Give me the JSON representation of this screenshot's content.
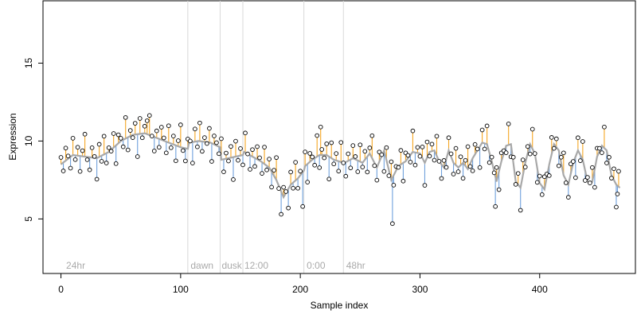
{
  "chart_data": {
    "type": "scatter",
    "xlabel": "Sample index",
    "ylabel": "Expression",
    "xlim": [
      -15,
      480
    ],
    "ylim": [
      1.5,
      19
    ],
    "xticks": [
      0,
      100,
      200,
      300,
      400
    ],
    "yticks": [
      5,
      10,
      15
    ],
    "colors": {
      "point_stroke": "#000000",
      "above_trend": "#f5a623",
      "below_trend": "#6fa0dc",
      "trend_line": "#a8a8a8",
      "vline": "#d8d8d8",
      "annotation": "#aaaaaa"
    },
    "annotations": [
      {
        "x": 3,
        "label": "24hr"
      },
      {
        "x": 107,
        "label": "dawn"
      },
      {
        "x": 133,
        "label": "dusk"
      },
      {
        "x": 152,
        "label": "12:00"
      },
      {
        "x": 204,
        "label": "0:00"
      },
      {
        "x": 237,
        "label": "48hr"
      }
    ],
    "boundaries": [
      106,
      133,
      152,
      203,
      236
    ],
    "series": [
      {
        "trend": [
          [
            0,
            8.5
          ],
          [
            10,
            9.1
          ],
          [
            20,
            9.0
          ],
          [
            30,
            8.9
          ],
          [
            40,
            9.3
          ],
          [
            50,
            10.0
          ],
          [
            60,
            10.4
          ],
          [
            70,
            10.5
          ],
          [
            80,
            10.2
          ],
          [
            90,
            9.9
          ],
          [
            100,
            9.6
          ],
          [
            106,
            9.5
          ],
          [
            107,
            9.9
          ],
          [
            115,
            10.0
          ],
          [
            125,
            9.9
          ],
          [
            133,
            9.6
          ],
          [
            134,
            8.8
          ],
          [
            140,
            8.9
          ],
          [
            146,
            9.0
          ],
          [
            152,
            9.1
          ],
          [
            153,
            9.3
          ],
          [
            160,
            9.0
          ],
          [
            167,
            8.7
          ],
          [
            174,
            8.3
          ],
          [
            180,
            7.5
          ],
          [
            186,
            6.4
          ],
          [
            192,
            7.2
          ],
          [
            198,
            7.6
          ],
          [
            203,
            8.1
          ],
          [
            204,
            8.4
          ],
          [
            210,
            8.8
          ],
          [
            216,
            9.1
          ],
          [
            222,
            9.1
          ],
          [
            228,
            8.8
          ],
          [
            236,
            8.6
          ],
          [
            237,
            8.6
          ],
          [
            244,
            8.9
          ],
          [
            252,
            8.6
          ],
          [
            258,
            9.2
          ],
          [
            264,
            8.3
          ],
          [
            270,
            9.4
          ],
          [
            276,
            7.5
          ],
          [
            282,
            8.4
          ],
          [
            288,
            8.7
          ],
          [
            294,
            9.3
          ],
          [
            300,
            9.2
          ],
          [
            304,
            8.6
          ],
          [
            308,
            9.3
          ],
          [
            312,
            9.4
          ],
          [
            316,
            8.7
          ],
          [
            320,
            8.3
          ],
          [
            324,
            9.4
          ],
          [
            328,
            8.6
          ],
          [
            332,
            8.3
          ],
          [
            336,
            8.6
          ],
          [
            340,
            8.2
          ],
          [
            344,
            8.9
          ],
          [
            348,
            9.4
          ],
          [
            352,
            9.9
          ],
          [
            356,
            9.8
          ],
          [
            360,
            8.7
          ],
          [
            364,
            7.4
          ],
          [
            368,
            8.7
          ],
          [
            372,
            9.7
          ],
          [
            376,
            9.8
          ],
          [
            380,
            7.4
          ],
          [
            384,
            7.0
          ],
          [
            388,
            8.6
          ],
          [
            392,
            9.8
          ],
          [
            396,
            9.2
          ],
          [
            400,
            7.3
          ],
          [
            404,
            6.9
          ],
          [
            408,
            8.5
          ],
          [
            412,
            9.8
          ],
          [
            416,
            9.4
          ],
          [
            420,
            7.8
          ],
          [
            424,
            7.2
          ],
          [
            428,
            8.6
          ],
          [
            432,
            9.4
          ],
          [
            436,
            8.8
          ],
          [
            440,
            7.4
          ],
          [
            444,
            7.4
          ],
          [
            448,
            9.0
          ],
          [
            452,
            9.7
          ],
          [
            456,
            9.4
          ],
          [
            460,
            7.8
          ],
          [
            464,
            7.2
          ],
          [
            467,
            7.0
          ]
        ],
        "noise": [
          0.5,
          -0.6,
          0.9,
          0.2,
          -0.8,
          1.2,
          -0.3,
          0.6,
          -1.1,
          0.4,
          1.6,
          -0.2,
          -0.9,
          0.7,
          0.1,
          -1.5,
          0.9,
          -0.4,
          1.3,
          -0.7,
          0.3,
          -0.1,
          1.0,
          -1.3,
          0.6,
          0.2,
          -0.5,
          1.5,
          -0.9,
          0.4,
          -0.2,
          0.8,
          -1.6,
          1.1,
          -0.3,
          0.5,
          -0.7,
          1.4,
          0.0,
          -1.0
        ]
      }
    ],
    "notable_points": [
      {
        "x": 277,
        "y": 4.7
      },
      {
        "x": 184,
        "y": 5.3
      },
      {
        "x": 190,
        "y": 5.7
      },
      {
        "x": 202,
        "y": 5.8
      },
      {
        "x": 217,
        "y": 10.9
      },
      {
        "x": 72,
        "y": 11.3
      },
      {
        "x": 363,
        "y": 5.8
      },
      {
        "x": 465,
        "y": 6.6
      }
    ]
  }
}
